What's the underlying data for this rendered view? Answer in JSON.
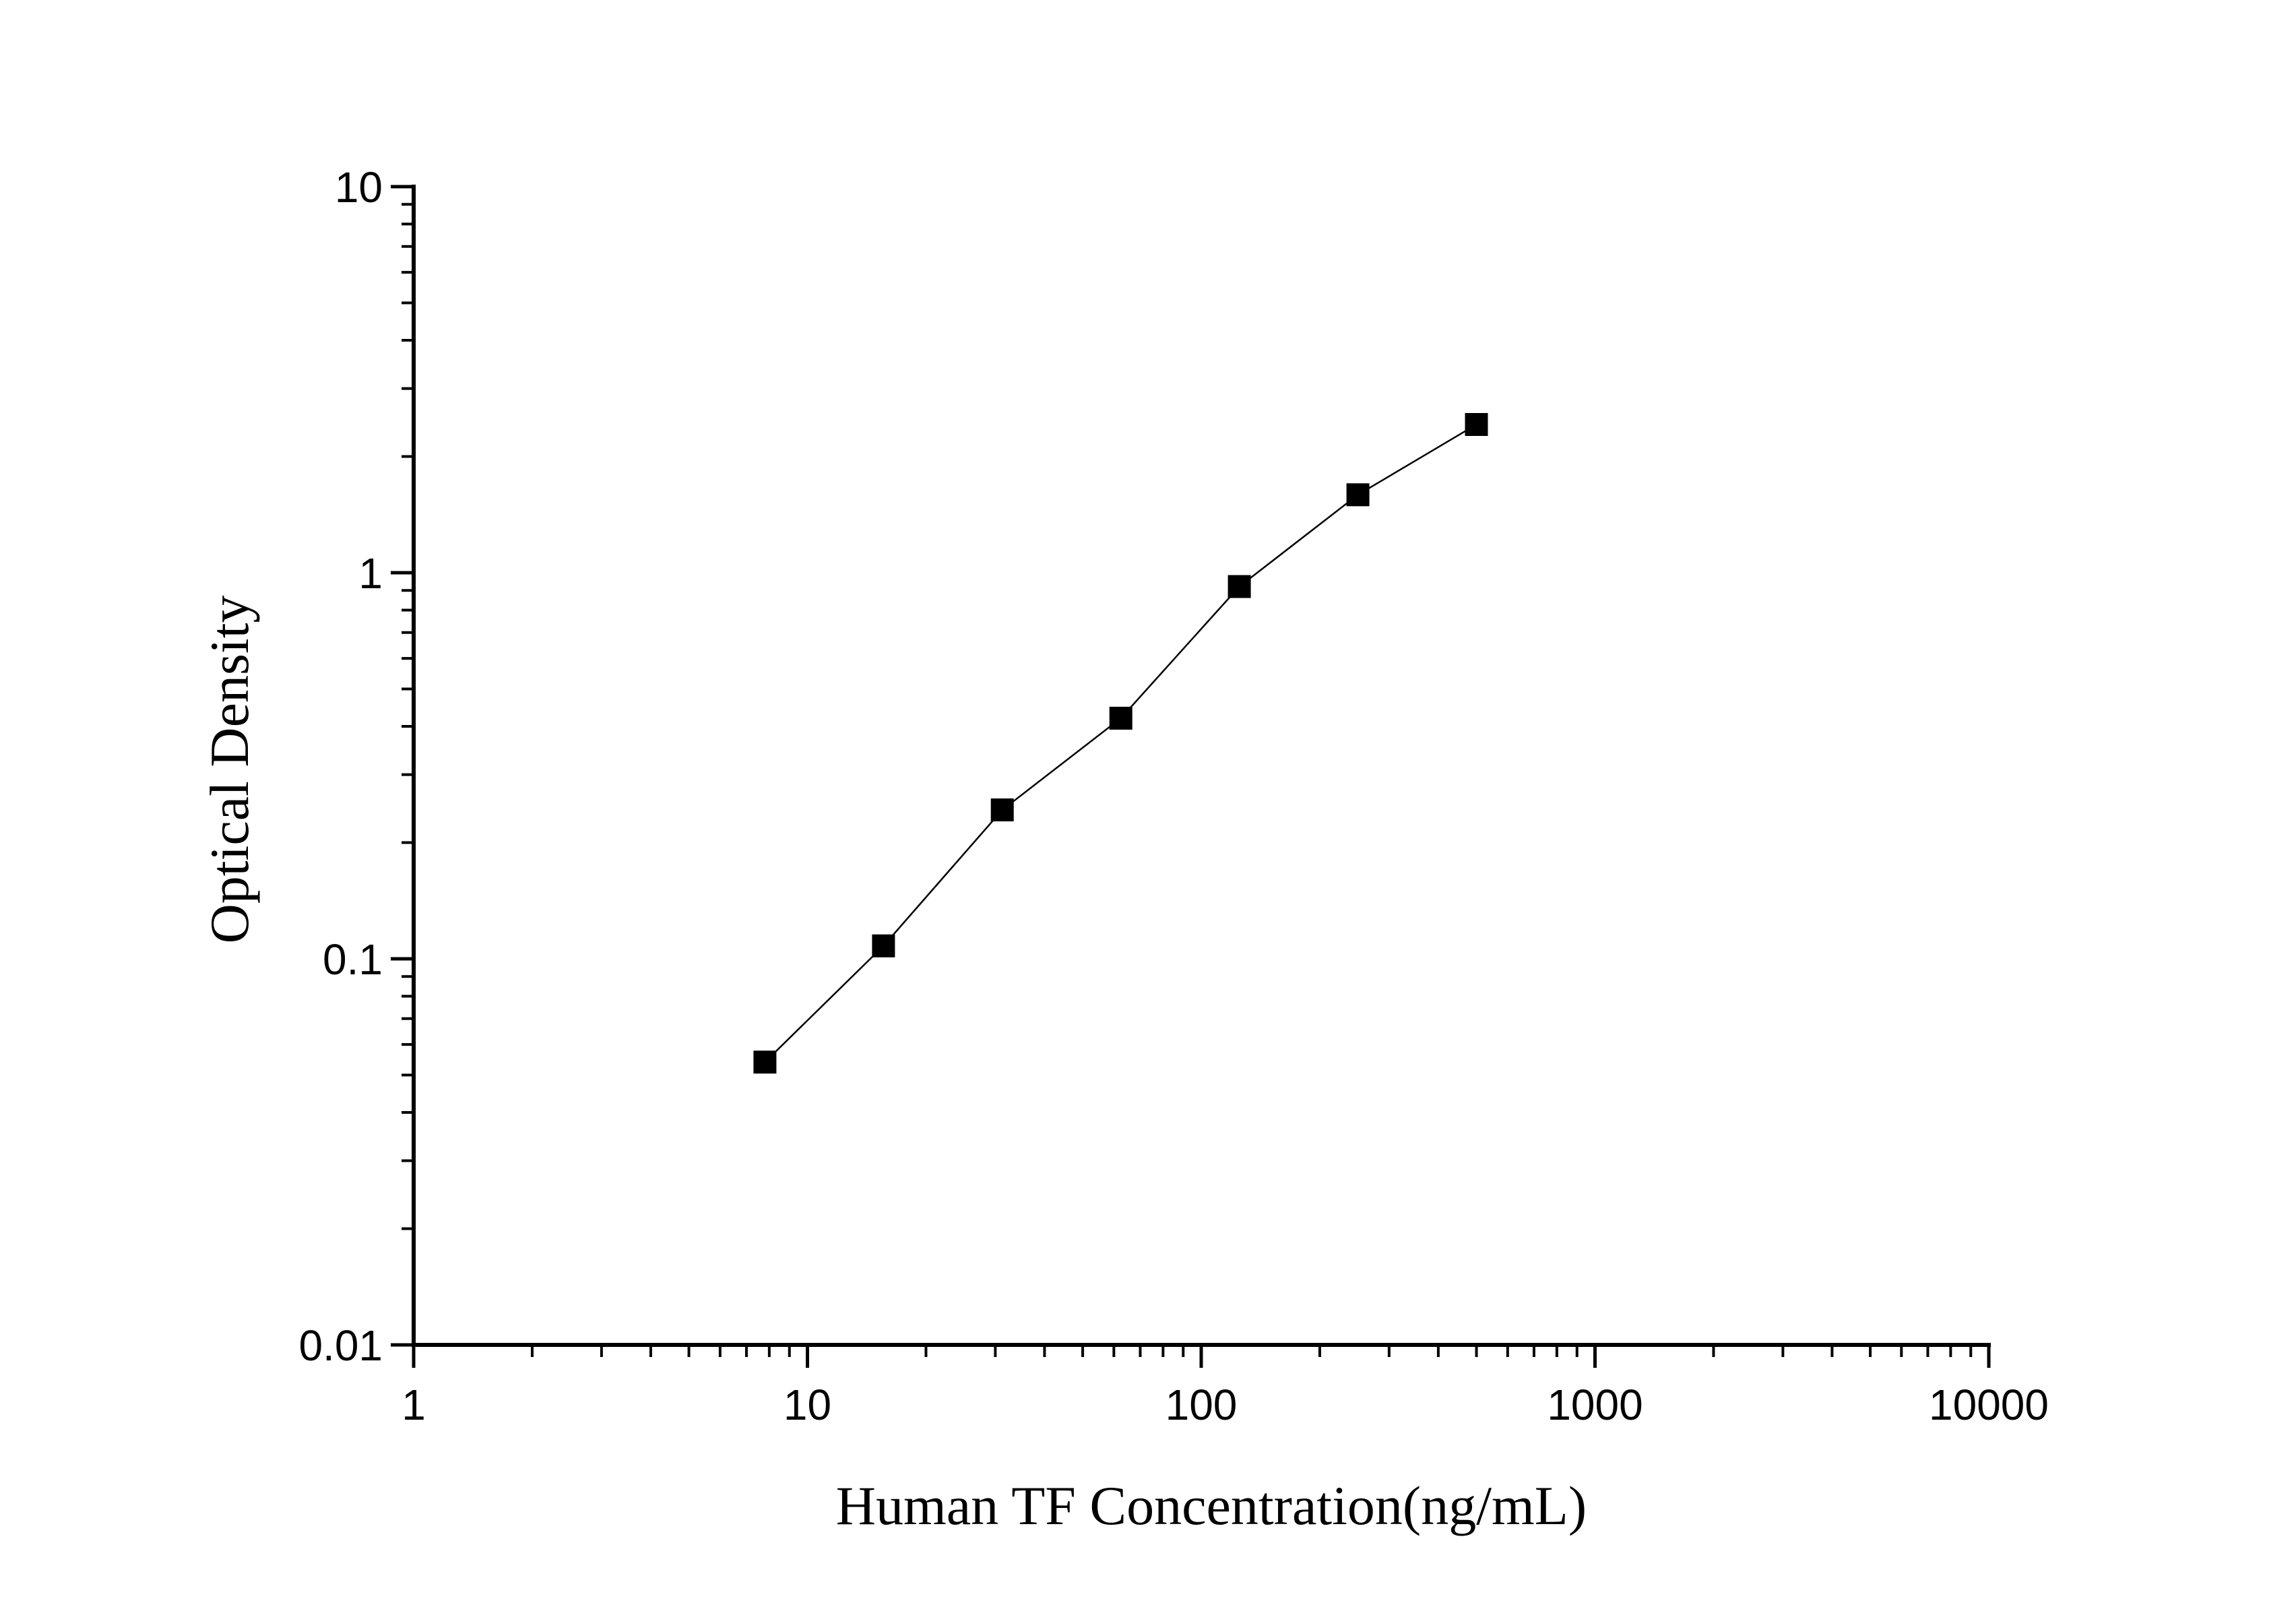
{
  "chart_data": {
    "type": "scatter",
    "title": "",
    "xlabel": "Human TF Concentration(ng/mL)",
    "ylabel": "Optical Density",
    "x_scale": "log",
    "y_scale": "log",
    "xlim": [
      1,
      10000
    ],
    "ylim": [
      0.01,
      10
    ],
    "x_ticks": [
      "1",
      "10",
      "100",
      "1000",
      "10000"
    ],
    "y_ticks": [
      "0.01",
      "0.1",
      "1",
      "10"
    ],
    "grid": false,
    "legend": "none",
    "marker": "square",
    "connect_points": true,
    "series": [
      {
        "x": [
          7.8,
          15.6,
          31.25,
          62.5,
          125,
          250,
          500
        ],
        "y": [
          0.054,
          0.108,
          0.243,
          0.42,
          0.921,
          1.592,
          2.421
        ]
      }
    ],
    "colors": {
      "marker": "#000000",
      "line": "#000000",
      "axis": "#000000"
    }
  }
}
